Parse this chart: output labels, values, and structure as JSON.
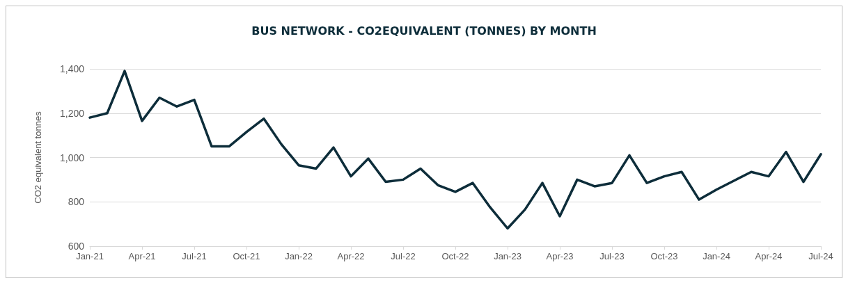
{
  "chart_data": {
    "type": "line",
    "title": "BUS NETWORK - CO2EQUIVALENT (TONNES) BY MONTH",
    "ylabel": "CO2 equivalent tonnes",
    "categories": [
      "Jan-21",
      null,
      null,
      "Apr-21",
      null,
      null,
      "Jul-21",
      null,
      null,
      "Oct-21",
      null,
      null,
      "Jan-22",
      null,
      null,
      "Apr-22",
      null,
      null,
      "Jul-22",
      null,
      null,
      "Oct-22",
      null,
      null,
      "Jan-23",
      null,
      null,
      "Apr-23",
      null,
      null,
      "Jul-23",
      null,
      null,
      "Oct-23",
      null,
      null,
      "Jan-24",
      null,
      null,
      "Apr-24",
      null,
      null,
      "Jul-24"
    ],
    "series": [
      {
        "color": "#0d2d3a",
        "values": [
          1180,
          1200,
          1390,
          1165,
          1270,
          1230,
          1260,
          1050,
          1050,
          1115,
          1175,
          1060,
          965,
          950,
          1045,
          915,
          995,
          890,
          900,
          950,
          875,
          845,
          885,
          775,
          680,
          765,
          885,
          735,
          900,
          870,
          885,
          1010,
          885,
          915,
          935,
          810,
          855,
          895,
          935,
          915,
          1025,
          890,
          1015
        ]
      }
    ],
    "ylim": [
      600,
      1400
    ],
    "yticks": [
      {
        "value": 600,
        "label": "600"
      },
      {
        "value": 800,
        "label": "800"
      },
      {
        "value": 1000,
        "label": "1,000"
      },
      {
        "value": 1200,
        "label": "1,200"
      },
      {
        "value": 1400,
        "label": "1,400"
      }
    ],
    "grid": "y",
    "marker": "none",
    "line_style": "solid"
  }
}
